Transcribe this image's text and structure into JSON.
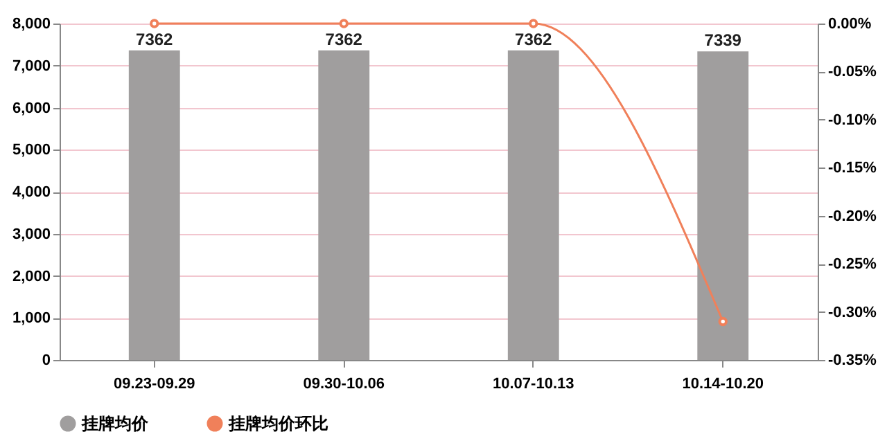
{
  "chart_data": {
    "type": "bar",
    "categories": [
      "09.23-09.29",
      "09.30-10.06",
      "10.07-10.13",
      "10.14-10.20"
    ],
    "series": [
      {
        "name": "挂牌均价",
        "color": "#a09e9e",
        "values": [
          7362,
          7362,
          7362,
          7339
        ],
        "value_labels": [
          "7362",
          "7362",
          "7362",
          "7339"
        ]
      },
      {
        "name": "挂牌均价环比",
        "type": "line",
        "axis": "y2",
        "color": "#f0805a",
        "values": [
          0,
          0,
          0,
          -0.31
        ],
        "marker": "circle"
      }
    ],
    "ylim": [
      0,
      8000
    ],
    "yticks": [
      0,
      {
        "value": 1000,
        "label": "1,000"
      },
      {
        "value": 2000,
        "label": "2,000"
      },
      {
        "value": 3000,
        "label": "3,000"
      },
      {
        "value": 4000,
        "label": "4,000"
      },
      {
        "value": 5000,
        "label": "5,000"
      },
      {
        "value": 6000,
        "label": "6,000"
      },
      {
        "value": 7000,
        "label": "7,000"
      },
      {
        "value": 8000,
        "label": "8,000"
      }
    ],
    "y2lim": [
      -0.35,
      0
    ],
    "y2ticks": [
      {
        "value": 0,
        "label": "0.00%"
      },
      {
        "value": -0.05,
        "label": "-0.05%"
      },
      {
        "value": -0.1,
        "label": "-0.10%"
      },
      {
        "value": -0.15,
        "label": "-0.15%"
      },
      {
        "value": -0.2,
        "label": "-0.20%"
      },
      {
        "value": -0.25,
        "label": "-0.25%"
      },
      {
        "value": -0.3,
        "label": "-0.30%"
      },
      {
        "value": -0.35,
        "label": "-0.35%"
      }
    ],
    "grid": "y",
    "legend": "bottom"
  }
}
